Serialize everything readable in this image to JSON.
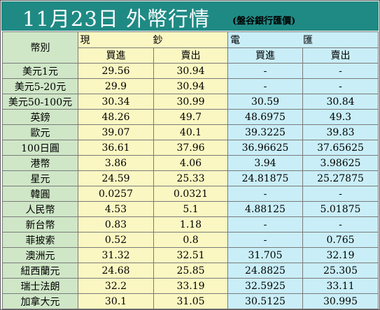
{
  "header": {
    "title": "11月23日 外幣行情",
    "subtitle": "(盤谷銀行匯價)"
  },
  "table": {
    "currency_header": "幣別",
    "groups": [
      "現鈔",
      "電匯"
    ],
    "subheaders": [
      "買進",
      "賣出",
      "買進",
      "賣出"
    ],
    "rows": [
      {
        "currency": "美元1元",
        "cash_buy": "29.56",
        "cash_sell": "30.94",
        "wire_buy": "-",
        "wire_sell": "-"
      },
      {
        "currency": "美元5-20元",
        "cash_buy": "29.9",
        "cash_sell": "30.94",
        "wire_buy": "-",
        "wire_sell": "-"
      },
      {
        "currency": "美元50-100元",
        "cash_buy": "30.34",
        "cash_sell": "30.99",
        "wire_buy": "30.59",
        "wire_sell": "30.84"
      },
      {
        "currency": "英鎊",
        "cash_buy": "48.26",
        "cash_sell": "49.7",
        "wire_buy": "48.6975",
        "wire_sell": "49.3"
      },
      {
        "currency": "歐元",
        "cash_buy": "39.07",
        "cash_sell": "40.1",
        "wire_buy": "39.3225",
        "wire_sell": "39.83"
      },
      {
        "currency": "100日圓",
        "cash_buy": "36.61",
        "cash_sell": "37.96",
        "wire_buy": "36.96625",
        "wire_sell": "37.65625"
      },
      {
        "currency": "港幣",
        "cash_buy": "3.86",
        "cash_sell": "4.06",
        "wire_buy": "3.94",
        "wire_sell": "3.98625"
      },
      {
        "currency": "星元",
        "cash_buy": "24.59",
        "cash_sell": "25.33",
        "wire_buy": "24.81875",
        "wire_sell": "25.27875"
      },
      {
        "currency": "韓圓",
        "cash_buy": "0.0257",
        "cash_sell": "0.0321",
        "wire_buy": "-",
        "wire_sell": "-"
      },
      {
        "currency": "人民幣",
        "cash_buy": "4.53",
        "cash_sell": "5.1",
        "wire_buy": "4.88125",
        "wire_sell": "5.01875"
      },
      {
        "currency": "新台幣",
        "cash_buy": "0.83",
        "cash_sell": "1.18",
        "wire_buy": "-",
        "wire_sell": "-"
      },
      {
        "currency": "菲披索",
        "cash_buy": "0.52",
        "cash_sell": "0.8",
        "wire_buy": "-",
        "wire_sell": "0.765"
      },
      {
        "currency": "澳洲元",
        "cash_buy": "31.32",
        "cash_sell": "32.51",
        "wire_buy": "31.705",
        "wire_sell": "32.19"
      },
      {
        "currency": "紐西蘭元",
        "cash_buy": "24.68",
        "cash_sell": "25.85",
        "wire_buy": "24.8825",
        "wire_sell": "25.305"
      },
      {
        "currency": "瑞士法朗",
        "cash_buy": "32.2",
        "cash_sell": "33.19",
        "wire_buy": "32.5925",
        "wire_sell": "33.11"
      },
      {
        "currency": "加拿大元",
        "cash_buy": "30.1",
        "cash_sell": "31.05",
        "wire_buy": "30.5125",
        "wire_sell": "30.995"
      }
    ]
  },
  "colors": {
    "header_bg": "#1f8a84",
    "label_col_bg": "#cfe7c7",
    "cash_col_bg": "#fbf7c2",
    "wire_col_bg": "#c9eef7"
  }
}
